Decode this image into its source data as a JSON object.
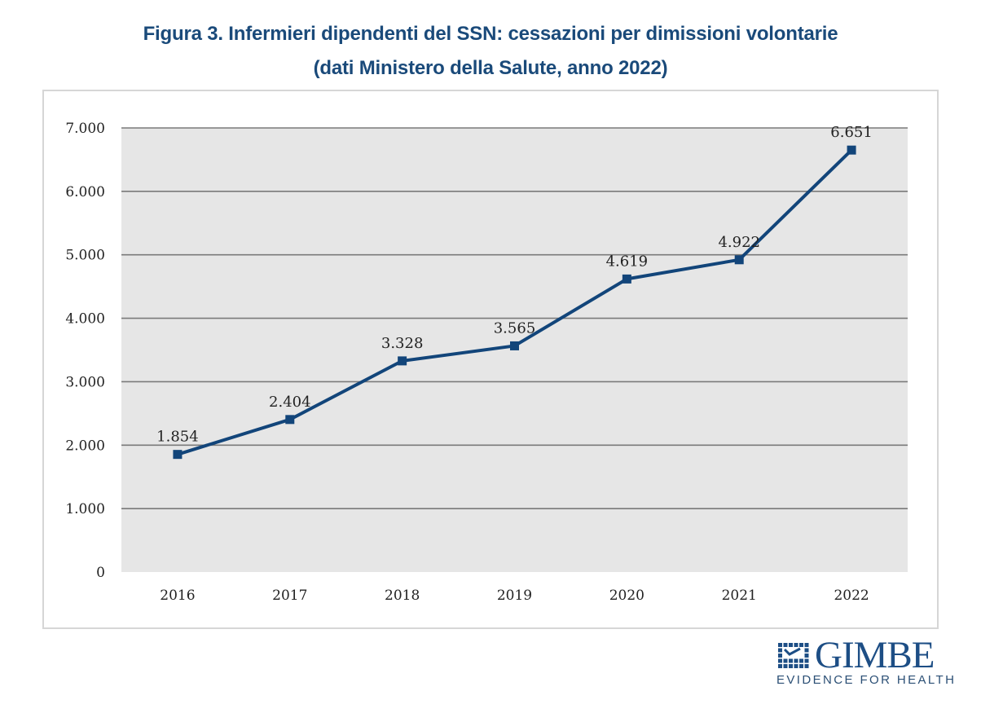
{
  "header": {
    "title_line1": "Figura 3. Infermieri dipendenti del SSN: cessazioni per dimissioni volontarie",
    "title_line2": "(dati Ministero della Salute, anno 2022)"
  },
  "chart_data": {
    "type": "line",
    "title": "Figura 3. Infermieri dipendenti del SSN: cessazioni per dimissioni volontarie (dati Ministero della Salute, anno 2022)",
    "xlabel": "",
    "ylabel": "",
    "categories": [
      "2016",
      "2017",
      "2018",
      "2019",
      "2020",
      "2021",
      "2022"
    ],
    "series": [
      {
        "name": "Cessazioni per dimissioni volontarie",
        "values": [
          1854,
          2404,
          3328,
          3565,
          4619,
          4922,
          6651
        ],
        "labels": [
          "1.854",
          "2.404",
          "3.328",
          "3.565",
          "4.619",
          "4.922",
          "6.651"
        ],
        "color": "#12457a",
        "marker": "square"
      }
    ],
    "ylim": [
      0,
      7000
    ],
    "yticks": [
      0,
      1000,
      2000,
      3000,
      4000,
      5000,
      6000,
      7000
    ],
    "ytick_labels": [
      "0",
      "1.000",
      "2.000",
      "3.000",
      "4.000",
      "5.000",
      "6.000",
      "7.000"
    ],
    "grid": true,
    "legend": "none",
    "plot_background": "#e6e6e6",
    "gridline_color": "#7a7a7a"
  },
  "logo": {
    "name": "GIMBE",
    "tagline": "EVIDENCE FOR HEALTH",
    "color": "#1d4e85"
  }
}
